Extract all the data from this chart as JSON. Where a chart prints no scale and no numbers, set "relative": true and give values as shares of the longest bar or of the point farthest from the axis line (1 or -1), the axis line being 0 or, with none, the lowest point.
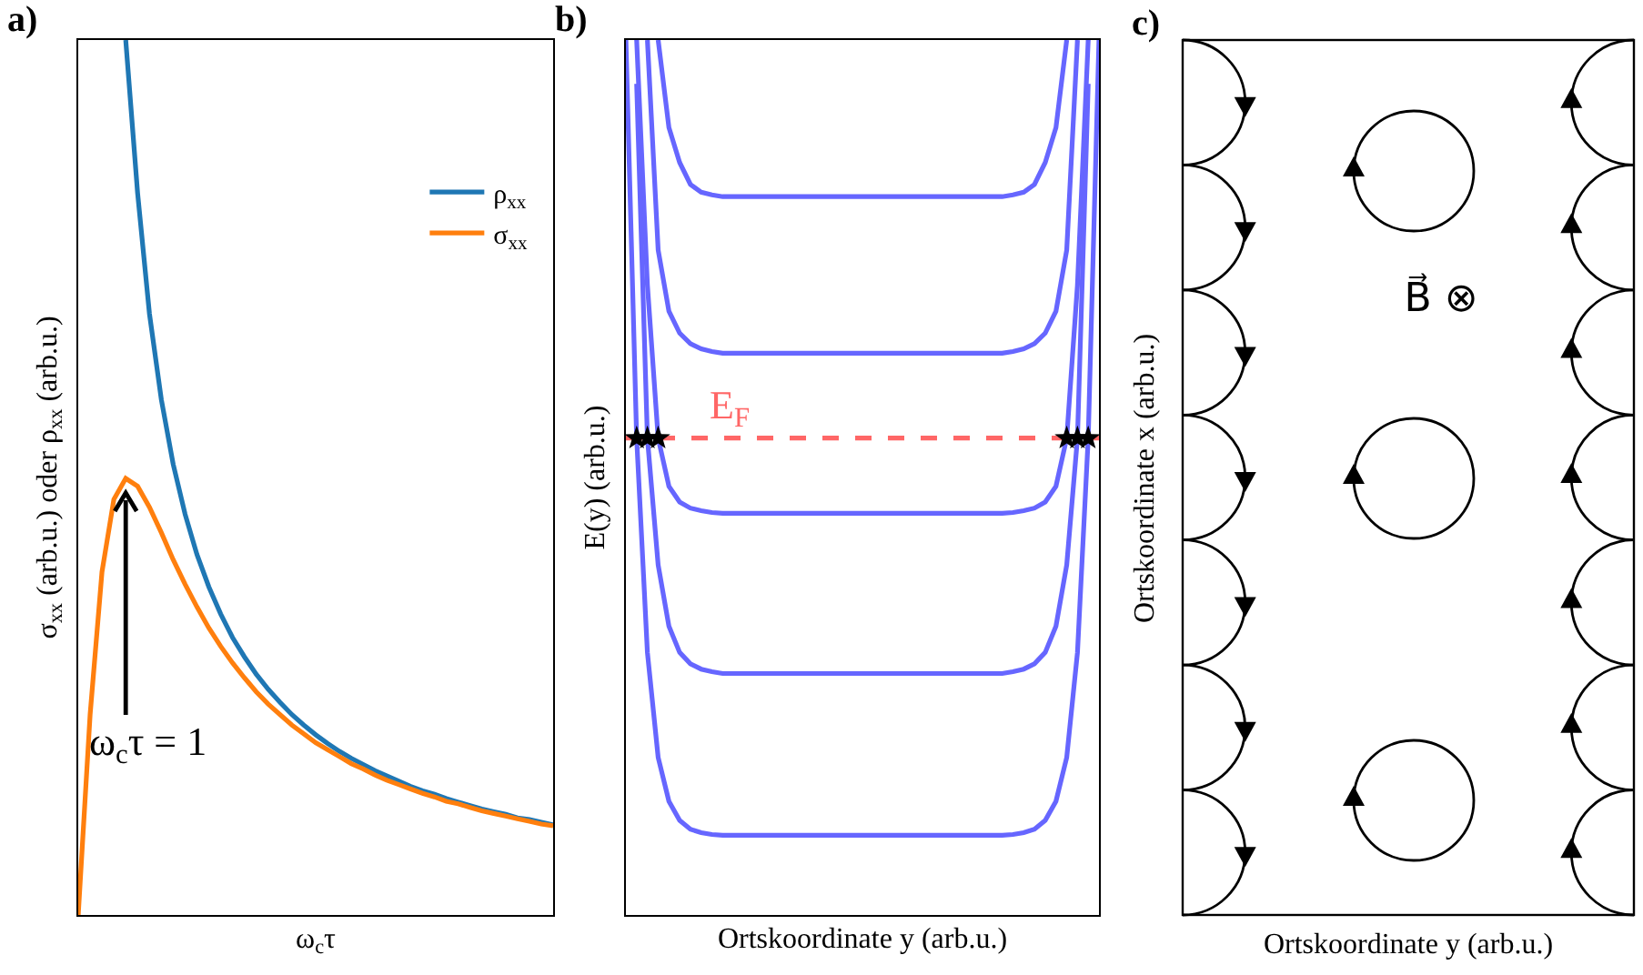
{
  "chart_data": [
    {
      "type": "line",
      "title": "a)",
      "xlabel": "ω$_{c}$τ",
      "ylabel": "σ$_{xx}$ (arb.u.) oder ρ$_{xx}$ (arb.u.)",
      "relative": true,
      "legend": "top right",
      "annotations": [
        "ω$_{c}$τ = 1"
      ],
      "categories": [
        null,
        null,
        null,
        null,
        null,
        null,
        null,
        null,
        null,
        null,
        null,
        null,
        null,
        null,
        null,
        null,
        null,
        null,
        null,
        null,
        null,
        null,
        null,
        null,
        null,
        null,
        null,
        null,
        null,
        null,
        null,
        null,
        null,
        null,
        null,
        null,
        null,
        null,
        null,
        null,
        null
      ],
      "series": [
        {
          "name": "ρ$_{xx}$",
          "color": "#1f77b4",
          "values": [
            null,
            null,
            null,
            null,
            1.0,
            0.825,
            0.687,
            0.589,
            0.515,
            0.458,
            0.412,
            0.375,
            0.344,
            0.317,
            0.295,
            0.275,
            0.258,
            0.243,
            0.229,
            0.217,
            0.206,
            0.196,
            0.187,
            0.179,
            0.172,
            0.165,
            0.159,
            0.153,
            0.147,
            0.142,
            0.138,
            0.133,
            0.129,
            0.125,
            0.121,
            0.118,
            0.115,
            0.111,
            0.109,
            0.106,
            0.103
          ]
        },
        {
          "name": "σ$_{xx}$",
          "color": "#ff7f0e",
          "values": [
            0,
            0.229,
            0.392,
            0.475,
            0.499,
            0.49,
            0.466,
            0.437,
            0.406,
            0.378,
            0.352,
            0.328,
            0.307,
            0.288,
            0.271,
            0.255,
            0.241,
            0.229,
            0.217,
            0.207,
            0.197,
            0.189,
            0.181,
            0.173,
            0.167,
            0.16,
            0.154,
            0.149,
            0.144,
            0.139,
            0.135,
            0.13,
            0.127,
            0.123,
            0.119,
            0.116,
            0.113,
            0.11,
            0.107,
            0.104,
            0.102
          ]
        }
      ]
    },
    {
      "type": "line",
      "title": "b)",
      "xlabel": "Ortskoordinate y (arb.u.)",
      "ylabel": "E(y) (arb.u.)",
      "relative": true,
      "categories": [
        null,
        null,
        null,
        null,
        null,
        null,
        null,
        null,
        null,
        null,
        null,
        null,
        null,
        null,
        null,
        null,
        null,
        null,
        null,
        null,
        null,
        null,
        null,
        null,
        null,
        null,
        null,
        null,
        null,
        null,
        null,
        null,
        null,
        null,
        null,
        null,
        null,
        null,
        null,
        null,
        null,
        null,
        null,
        null,
        null
      ],
      "ref_lines": [
        {
          "axis": "y",
          "value": 0.545,
          "label": "E$_{F}$",
          "color": "#ff6666",
          "line_style": "dashed"
        }
      ],
      "series": [
        {
          "color": "#6666ff",
          "values": [
            null,
            null,
            null,
            1.0,
            0.9,
            0.86,
            0.835,
            0.826,
            0.823,
            0.821,
            0.821,
            0.821,
            0.821,
            0.821,
            0.821,
            0.821,
            0.821,
            0.821,
            0.821,
            0.821,
            0.821,
            0.821,
            0.821,
            0.821,
            0.821,
            0.821,
            0.821,
            0.821,
            0.821,
            0.821,
            0.821,
            0.821,
            0.821,
            0.821,
            0.821,
            0.821,
            0.823,
            0.826,
            0.835,
            0.86,
            0.9,
            1.0,
            null,
            null,
            null
          ]
        },
        {
          "color": "#6666ff",
          "values": [
            null,
            null,
            1.0,
            0.76,
            0.69,
            0.665,
            0.653,
            0.647,
            0.644,
            0.642,
            0.642,
            0.642,
            0.642,
            0.642,
            0.642,
            0.642,
            0.642,
            0.642,
            0.642,
            0.642,
            0.642,
            0.642,
            0.642,
            0.642,
            0.642,
            0.642,
            0.642,
            0.642,
            0.642,
            0.642,
            0.642,
            0.642,
            0.642,
            0.642,
            0.642,
            0.642,
            0.644,
            0.647,
            0.653,
            0.665,
            0.69,
            0.76,
            1.0,
            null,
            null
          ]
        },
        {
          "color": "#6666ff",
          "values": [
            null,
            1.0,
            0.72,
            0.545,
            0.49,
            0.472,
            0.465,
            0.462,
            0.46,
            0.459,
            0.459,
            0.459,
            0.459,
            0.459,
            0.459,
            0.459,
            0.459,
            0.459,
            0.459,
            0.459,
            0.459,
            0.459,
            0.459,
            0.459,
            0.459,
            0.459,
            0.459,
            0.459,
            0.459,
            0.459,
            0.459,
            0.459,
            0.459,
            0.459,
            0.459,
            0.459,
            0.46,
            0.462,
            0.465,
            0.472,
            0.49,
            0.545,
            0.72,
            1.0,
            null
          ]
        },
        {
          "color": "#6666ff",
          "values": [
            null,
            0.95,
            0.545,
            0.4,
            0.33,
            0.3,
            0.287,
            0.281,
            0.278,
            0.276,
            0.276,
            0.276,
            0.276,
            0.276,
            0.276,
            0.276,
            0.276,
            0.276,
            0.276,
            0.276,
            0.276,
            0.276,
            0.276,
            0.276,
            0.276,
            0.276,
            0.276,
            0.276,
            0.276,
            0.276,
            0.276,
            0.276,
            0.276,
            0.276,
            0.276,
            0.276,
            0.278,
            0.281,
            0.287,
            0.3,
            0.33,
            0.4,
            0.545,
            0.95,
            null
          ]
        },
        {
          "color": "#6666ff",
          "values": [
            1.0,
            0.545,
            0.3,
            0.18,
            0.13,
            0.108,
            0.098,
            0.094,
            0.092,
            0.091,
            0.091,
            0.091,
            0.091,
            0.091,
            0.091,
            0.091,
            0.091,
            0.091,
            0.091,
            0.091,
            0.091,
            0.091,
            0.091,
            0.091,
            0.091,
            0.091,
            0.091,
            0.091,
            0.091,
            0.091,
            0.091,
            0.091,
            0.091,
            0.091,
            0.091,
            0.091,
            0.092,
            0.094,
            0.098,
            0.108,
            0.13,
            0.18,
            0.3,
            0.545,
            1.0
          ]
        }
      ]
    },
    {
      "type": "other",
      "title": "c)",
      "xlabel": "Ortskoordinate y (arb.u.)",
      "ylabel": "Ortskoordinate x (arb.u.)",
      "annotations": [
        "B⃗ ⊗"
      ]
    }
  ]
}
